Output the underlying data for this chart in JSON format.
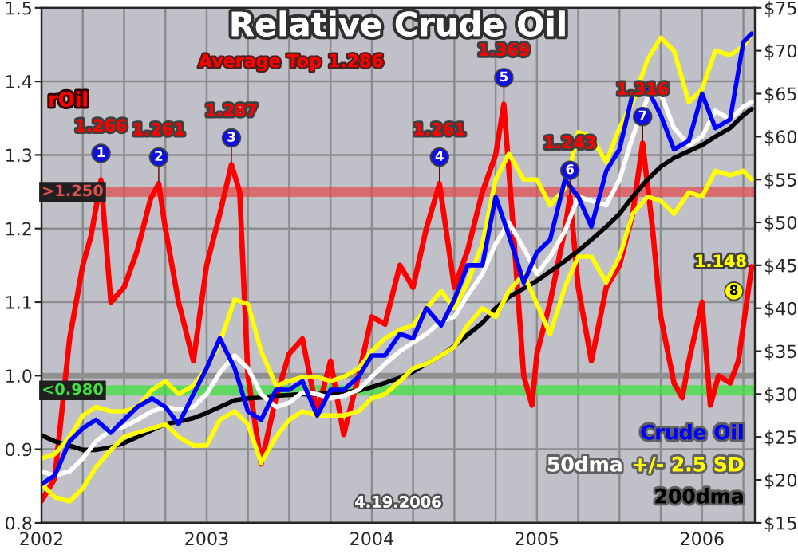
{
  "chart_data": {
    "type": "line",
    "title": "Relative Crude Oil",
    "x": [
      2002.0,
      2002.08,
      2002.17,
      2002.25,
      2002.33,
      2002.42,
      2002.5,
      2002.58,
      2002.67,
      2002.75,
      2002.83,
      2002.92,
      2003.0,
      2003.08,
      2003.17,
      2003.25,
      2003.33,
      2003.42,
      2003.5,
      2003.58,
      2003.67,
      2003.75,
      2003.83,
      2003.92,
      2004.0,
      2004.08,
      2004.17,
      2004.25,
      2004.33,
      2004.42,
      2004.5,
      2004.58,
      2004.67,
      2004.75,
      2004.83,
      2004.92,
      2005.0,
      2005.08,
      2005.17,
      2005.25,
      2005.33,
      2005.42,
      2005.5,
      2005.58,
      2005.67,
      2005.75,
      2005.83,
      2005.92,
      2006.0,
      2006.08,
      2006.17,
      2006.25,
      2006.3
    ],
    "series": [
      {
        "name": "rOil",
        "color": "#ff0000",
        "x": [
          2002.0,
          2002.08,
          2002.17,
          2002.25,
          2002.3,
          2002.36,
          2002.42,
          2002.5,
          2002.58,
          2002.66,
          2002.71,
          2002.75,
          2002.83,
          2002.92,
          2003.0,
          2003.08,
          2003.15,
          2003.2,
          2003.25,
          2003.33,
          2003.42,
          2003.5,
          2003.58,
          2003.67,
          2003.75,
          2003.83,
          2003.92,
          2004.0,
          2004.08,
          2004.17,
          2004.25,
          2004.33,
          2004.41,
          2004.5,
          2004.58,
          2004.67,
          2004.75,
          2004.8,
          2004.85,
          2004.92,
          2004.97,
          2005.0,
          2005.08,
          2005.17,
          2005.2,
          2005.25,
          2005.33,
          2005.42,
          2005.5,
          2005.58,
          2005.64,
          2005.7,
          2005.75,
          2005.83,
          2005.88,
          2005.92,
          2006.0,
          2006.05,
          2006.1,
          2006.17,
          2006.22,
          2006.3
        ],
        "values": [
          0.83,
          0.86,
          1.05,
          1.15,
          1.19,
          1.266,
          1.1,
          1.12,
          1.17,
          1.24,
          1.261,
          1.2,
          1.1,
          1.02,
          1.15,
          1.22,
          1.287,
          1.25,
          1.0,
          0.88,
          0.97,
          1.03,
          1.05,
          0.95,
          1.02,
          0.92,
          1.0,
          1.08,
          1.07,
          1.15,
          1.12,
          1.2,
          1.261,
          1.12,
          1.17,
          1.25,
          1.3,
          1.369,
          1.22,
          1.0,
          0.96,
          1.03,
          1.1,
          1.2,
          1.243,
          1.12,
          1.02,
          1.12,
          1.15,
          1.22,
          1.316,
          1.2,
          1.08,
          0.99,
          0.97,
          1.02,
          1.1,
          0.96,
          1.0,
          0.99,
          1.02,
          1.148
        ]
      },
      {
        "name": "200dma",
        "color": "#000000",
        "axis": "y2",
        "values": [
          25.2,
          24.5,
          24,
          23.5,
          23.5,
          23.8,
          24.3,
          25,
          25.8,
          26.5,
          26.8,
          27.2,
          27.8,
          28.5,
          29.3,
          29.5,
          29.6,
          29.8,
          29.9,
          30,
          30,
          30.1,
          30.2,
          30.4,
          30.8,
          31.3,
          31.9,
          32.6,
          33.5,
          34.5,
          35.6,
          36.9,
          38.3,
          40,
          41.3,
          42.3,
          43.2,
          44.3,
          45.5,
          46.7,
          48,
          49.5,
          51,
          53,
          55,
          56.5,
          57.5,
          58.3,
          59,
          60,
          61,
          62.5,
          63.2
        ]
      },
      {
        "color": "#ffff00",
        "axis": "y2",
        "values": [
          19.5,
          18,
          17.5,
          19,
          21.5,
          23.5,
          25,
          25.5,
          26,
          26.5,
          25,
          24,
          24,
          27,
          28,
          26.5,
          22,
          25,
          27,
          28,
          27.5,
          27.5,
          27.5,
          28,
          29.5,
          30,
          31.5,
          33,
          33.5,
          34.5,
          35.5,
          38,
          40,
          39,
          42,
          44,
          40.5,
          37,
          42.5,
          46,
          46,
          43,
          46,
          51,
          53,
          52.5,
          51,
          53.5,
          53,
          56,
          55.5,
          56,
          55
        ]
      },
      {
        "name": "+/- 2.5 SD",
        "color": "#ffff00",
        "axis": "y2",
        "values": [
          22.5,
          23,
          25,
          27.5,
          28.5,
          28,
          28,
          28.5,
          30.5,
          31.5,
          30,
          31,
          33,
          36,
          41,
          40.5,
          35,
          31,
          31.5,
          32,
          32,
          31.5,
          32,
          33,
          35,
          36.5,
          37.5,
          38,
          40,
          42,
          40,
          43,
          47.5,
          55,
          58,
          55,
          55,
          52,
          54,
          60.5,
          60,
          57,
          61,
          64,
          69,
          71.5,
          70,
          64,
          65.5,
          70,
          69.5,
          70.5,
          72
        ]
      },
      {
        "name": "50dma",
        "color": "#ffffff",
        "axis": "y2",
        "values": [
          21,
          20.5,
          21,
          22.5,
          24.5,
          25.8,
          26.2,
          27,
          28,
          28.5,
          28.2,
          28.5,
          30,
          32.5,
          34.5,
          33,
          30,
          28.5,
          29,
          30.2,
          30,
          29.5,
          29.8,
          30.5,
          32,
          33.5,
          35,
          36,
          37,
          38.5,
          39,
          41.5,
          44,
          47.5,
          50,
          47,
          44,
          46,
          49,
          53,
          52.5,
          52,
          55,
          60,
          64.5,
          65,
          61,
          59,
          60,
          63,
          62,
          63.5,
          64
        ]
      },
      {
        "name": "Crude Oil",
        "color": "#0000ff",
        "axis": "y2",
        "values": [
          19.5,
          20.5,
          24.5,
          26,
          27,
          25.5,
          27,
          28.5,
          29.5,
          28.5,
          26.5,
          30,
          33,
          36.5,
          33,
          28,
          27,
          30.5,
          30.5,
          31.5,
          27.5,
          30.5,
          30.5,
          32,
          34.5,
          34.5,
          37,
          36.5,
          40,
          38,
          41,
          45,
          45,
          53,
          48.5,
          43,
          46.5,
          48,
          55,
          53,
          49.5,
          56,
          58.5,
          65,
          65.5,
          62.5,
          58.5,
          59.5,
          65,
          61,
          62,
          71,
          72
        ]
      }
    ],
    "xlim": [
      2002,
      2006.32
    ],
    "xticks": [
      2002,
      {
        "value": 2002.25,
        "label": null
      },
      {
        "value": 2002.5,
        "label": null
      },
      {
        "value": 2002.75,
        "label": null
      },
      2003,
      {
        "value": 2003.25,
        "label": null
      },
      {
        "value": 2003.5,
        "label": null
      },
      {
        "value": 2003.75,
        "label": null
      },
      2004,
      {
        "value": 2004.25,
        "label": null
      },
      {
        "value": 2004.5,
        "label": null
      },
      {
        "value": 2004.75,
        "label": null
      },
      2005,
      {
        "value": 2005.25,
        "label": null
      },
      {
        "value": 2005.5,
        "label": null
      },
      {
        "value": 2005.75,
        "label": null
      },
      2006,
      {
        "value": 2006.25,
        "label": null
      }
    ],
    "ylim": [
      0.8,
      1.5
    ],
    "yticks": [
      {
        "value": 0.8,
        "label": "0.8"
      },
      {
        "value": 0.9,
        "label": "0.9"
      },
      {
        "value": 1.0,
        "label": "1.0"
      },
      {
        "value": 1.1,
        "label": "1.1"
      },
      {
        "value": 1.2,
        "label": "1.2"
      },
      {
        "value": 1.3,
        "label": "1.3"
      },
      {
        "value": 1.4,
        "label": "1.4"
      },
      {
        "value": 1.5,
        "label": "1.5"
      }
    ],
    "y2lim": [
      15,
      75
    ],
    "y2ticks": [
      {
        "value": 15,
        "label": "$15"
      },
      {
        "value": 20,
        "label": "$20"
      },
      {
        "value": 25,
        "label": "$25"
      },
      {
        "value": 30,
        "label": "$30"
      },
      {
        "value": 35,
        "label": "$35"
      },
      {
        "value": 40,
        "label": "$40"
      },
      {
        "value": 45,
        "label": "$45"
      },
      {
        "value": 50,
        "label": "$50"
      },
      {
        "value": 55,
        "label": "$55"
      },
      {
        "value": 60,
        "label": "$60"
      },
      {
        "value": 65,
        "label": "$65"
      },
      {
        "value": 70,
        "label": "$70"
      },
      {
        "value": 75,
        "label": "$75"
      }
    ],
    "bands": [
      {
        "axis": "y",
        "from": 1.243,
        "to": 1.257,
        "label": ">1.250",
        "color": "#e05050"
      },
      {
        "axis": "y",
        "from": 0.973,
        "to": 0.987,
        "label": "<0.980",
        "color": "#40e040"
      }
    ],
    "ref_lines": [
      {
        "axis": "y",
        "value": 1.0,
        "color": "#909090"
      }
    ],
    "annotations": [
      "Average Top 1.286",
      "4.19.2006",
      {
        "text": "1.266",
        "x": 2002.36,
        "y": 1.266
      },
      {
        "text": "1",
        "x": 2002.36,
        "y": 1.266
      },
      {
        "text": "1.261",
        "x": 2002.71,
        "y": 1.261
      },
      {
        "text": "2",
        "x": 2002.71,
        "y": 1.261
      },
      {
        "text": "1.287",
        "x": 2003.15,
        "y": 1.287
      },
      {
        "text": "3",
        "x": 2003.15,
        "y": 1.287
      },
      {
        "text": "1.261",
        "x": 2004.41,
        "y": 1.261
      },
      {
        "text": "4",
        "x": 2004.41,
        "y": 1.261
      },
      {
        "text": "1.369",
        "x": 2004.8,
        "y": 1.369
      },
      {
        "text": "5",
        "x": 2004.8,
        "y": 1.369
      },
      {
        "text": "1.243",
        "x": 2005.2,
        "y": 1.243
      },
      {
        "text": "6",
        "x": 2005.2,
        "y": 1.243
      },
      {
        "text": "1.316",
        "x": 2005.64,
        "y": 1.316
      },
      {
        "text": "7",
        "x": 2005.64,
        "y": 1.316
      },
      {
        "text": "1.148",
        "x": 2006.3,
        "y": 1.148
      },
      {
        "text": "8",
        "x": 2006.3,
        "y": 1.148
      }
    ],
    "grid": true,
    "legend": "bottom right"
  }
}
